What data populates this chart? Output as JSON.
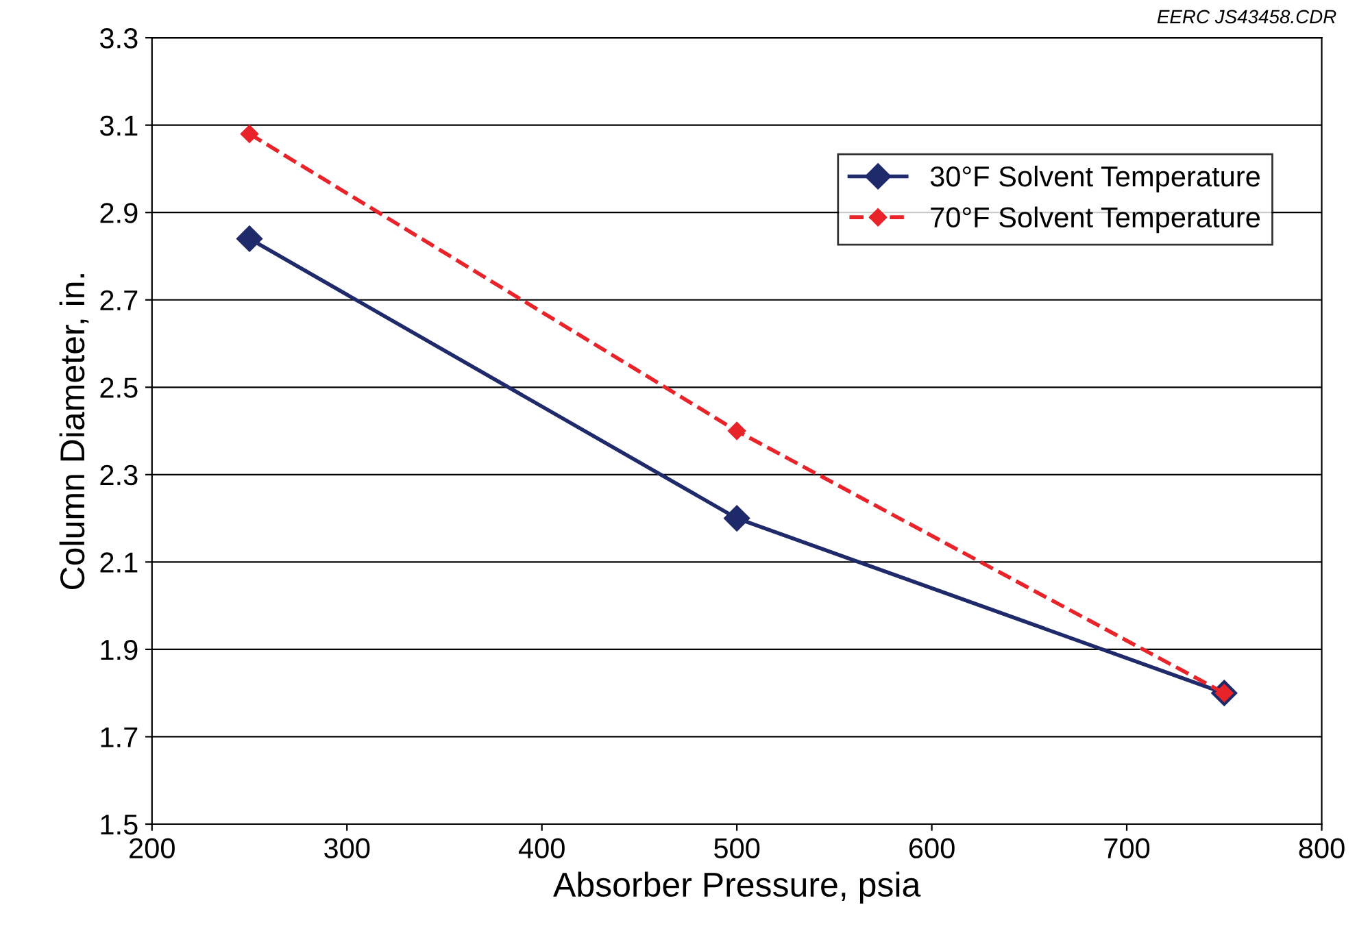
{
  "chart_data": {
    "type": "line",
    "xlabel": "Absorber Pressure, psia",
    "ylabel": "Column Diameter, in.",
    "annotations": [
      "EERC JS43458.CDR"
    ],
    "x": [
      250,
      500,
      750
    ],
    "series": [
      {
        "name": "30°F Solvent Temperature",
        "color": "#1f2a6b",
        "values": [
          2.84,
          2.2,
          1.8
        ],
        "line_style": "solid"
      },
      {
        "name": "70°F Solvent Temperature",
        "color": "#e8242a",
        "values": [
          3.08,
          2.4,
          1.8
        ],
        "line_style": "dashed"
      }
    ],
    "xlim": [
      200,
      800
    ],
    "xticks": [
      200,
      300,
      400,
      500,
      600,
      700,
      800
    ],
    "ylim": [
      1.5,
      3.3
    ],
    "yticks": [
      1.5,
      1.7,
      1.9,
      2.1,
      2.3,
      2.5,
      2.7,
      2.9,
      3.1,
      3.3
    ],
    "grid": "y",
    "legend": "top right",
    "marker": "diamond"
  }
}
